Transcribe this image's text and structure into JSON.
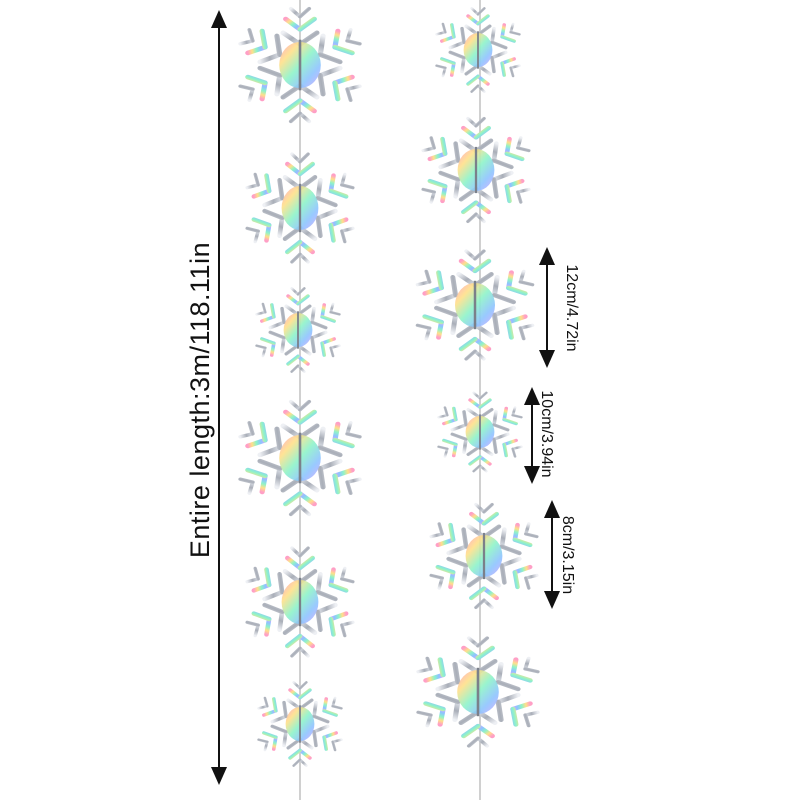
{
  "product": {
    "entire_length": "Entire length:3m/118.11in",
    "sizes": {
      "large": "12cm/4.72in",
      "medium": "10cm/3.94in",
      "small": "8cm/3.15in"
    }
  },
  "colors": {
    "background": "#ffffff",
    "string": "#c9c9c9",
    "flake_base": "#c7cbd2",
    "flake_edge": "#8a8f99",
    "arrow": "#111111",
    "hologram": [
      "#ff7fb3",
      "#ffd36b",
      "#7ff0c0",
      "#7fb8ff",
      "#c89bff"
    ]
  },
  "garlands": [
    {
      "name": "left-garland",
      "snowflake_count": 6
    },
    {
      "name": "right-garland",
      "snowflake_count": 6
    }
  ]
}
